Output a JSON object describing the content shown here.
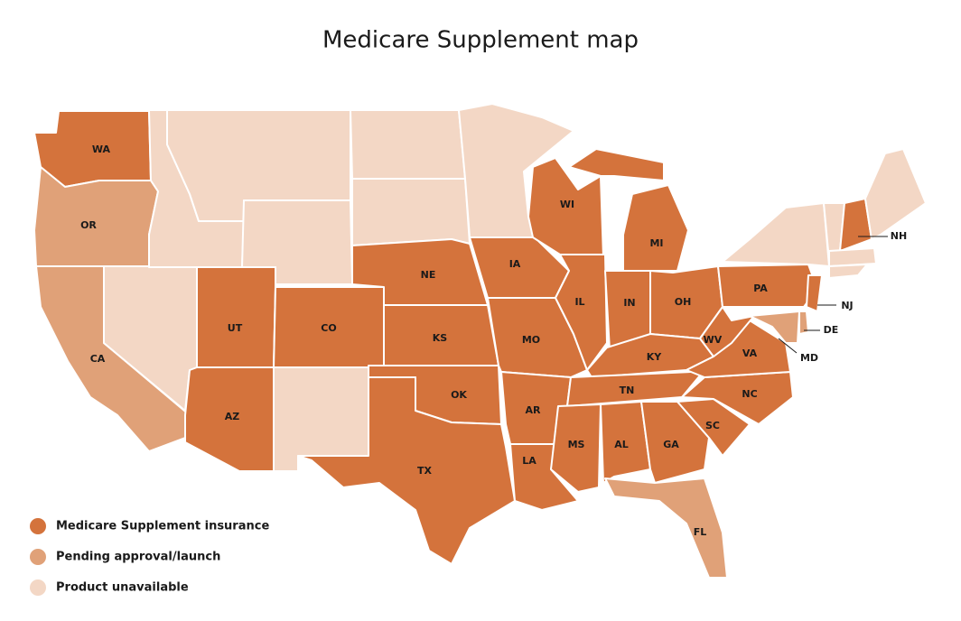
{
  "title": "Medicare Supplement map",
  "legend": [
    {
      "label": "Medicare Supplement insurance",
      "color": "#d4733c"
    },
    {
      "label": "Pending approval/launch",
      "color": "#e0a178"
    },
    {
      "label": "Product unavailable",
      "color": "#f3d7c5"
    }
  ],
  "states": [
    {
      "label": "WA",
      "status": 0
    },
    {
      "label": "OR",
      "status": 1
    },
    {
      "label": "CA",
      "status": 1
    },
    {
      "status": 2
    },
    {
      "status": 2
    },
    {
      "status": 2
    },
    {
      "status": 2
    },
    {
      "label": "UT",
      "status": 0
    },
    {
      "label": "CO",
      "status": 0
    },
    {
      "label": "AZ",
      "status": 0
    },
    {
      "status": 2
    },
    {
      "status": 2
    },
    {
      "status": 2
    },
    {
      "label": "NE",
      "status": 0
    },
    {
      "label": "KS",
      "status": 0
    },
    {
      "label": "OK",
      "status": 0
    },
    {
      "label": "TX",
      "status": 0
    },
    {
      "status": 2
    },
    {
      "label": "IA",
      "status": 0
    },
    {
      "label": "MO",
      "status": 0
    },
    {
      "label": "AR",
      "status": 0
    },
    {
      "label": "LA",
      "status": 0
    },
    {
      "label": "WI",
      "status": 0
    },
    {
      "label": "IL",
      "status": 0
    },
    {
      "label": "MI",
      "status": 0
    },
    {
      "label": "IN",
      "status": 0
    },
    {
      "label": "OH",
      "status": 0
    },
    {
      "label": "KY",
      "status": 0
    },
    {
      "label": "TN",
      "status": 0
    },
    {
      "label": "MS",
      "status": 0
    },
    {
      "label": "AL",
      "status": 0
    },
    {
      "label": "GA",
      "status": 0
    },
    {
      "label": "FL",
      "status": 1
    },
    {
      "label": "SC",
      "status": 0
    },
    {
      "label": "NC",
      "status": 0
    },
    {
      "label": "VA",
      "status": 0
    },
    {
      "label": "WV",
      "status": 0
    },
    {
      "label": "PA",
      "status": 0
    },
    {
      "status": 2
    },
    {
      "label": "NJ",
      "status": 0
    },
    {
      "label": "DE",
      "status": 1
    },
    {
      "label": "MD",
      "status": 1
    },
    {
      "status": 2
    },
    {
      "label": "NH",
      "status": 0
    },
    {
      "status": 2
    },
    {
      "status": 2
    },
    {
      "status": 2
    }
  ]
}
